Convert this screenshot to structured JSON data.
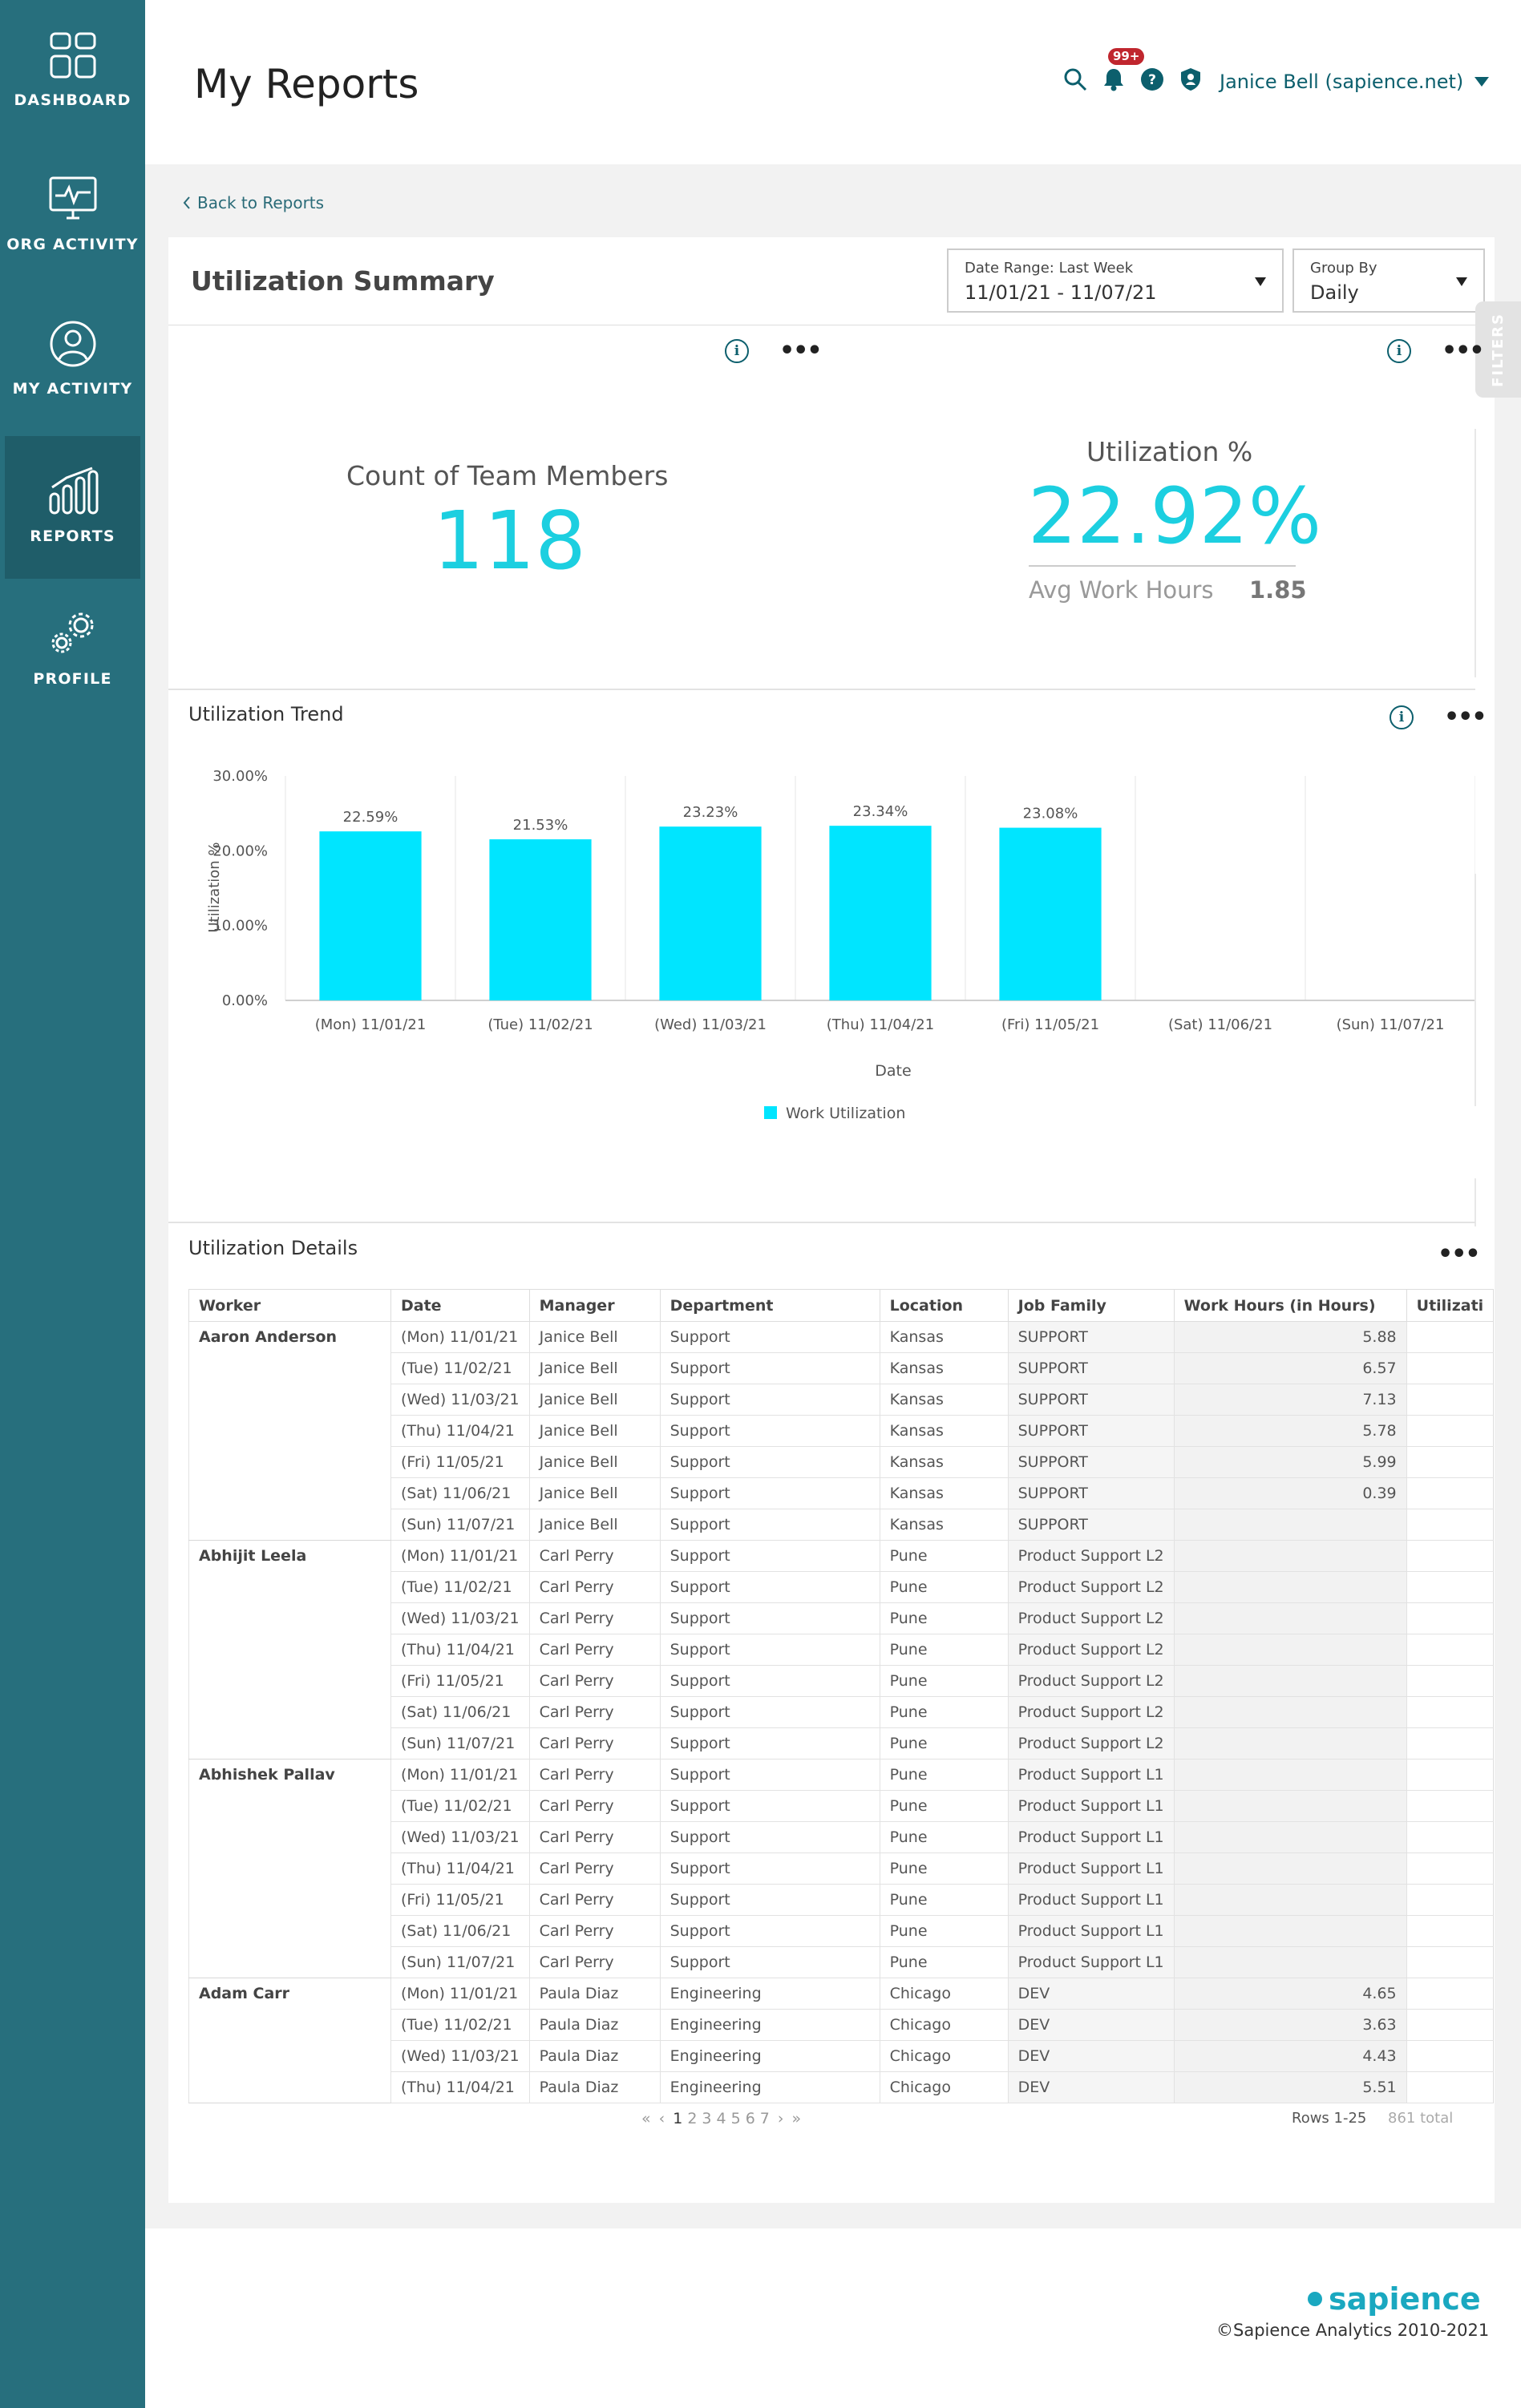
{
  "sidebar": {
    "items": [
      {
        "label": "DASHBOARD",
        "icon": "dashboard-grid-icon",
        "active": false
      },
      {
        "label": "ORG ACTIVITY",
        "icon": "monitor-pulse-icon",
        "active": false
      },
      {
        "label": "MY ACTIVITY",
        "icon": "user-circle-icon",
        "active": false
      },
      {
        "label": "REPORTS",
        "icon": "bar-chart-icon",
        "active": true
      },
      {
        "label": "PROFILE",
        "icon": "gears-icon",
        "active": false
      }
    ]
  },
  "header": {
    "title": "My Reports",
    "notification_badge": "99+",
    "user_name": "Janice Bell (sapience.net)",
    "icons": [
      "search-icon",
      "bell-icon",
      "help-icon",
      "shield-user-icon"
    ]
  },
  "back_link": "Back to Reports",
  "report": {
    "title": "Utilization Summary",
    "date_range": {
      "label": "Date Range: Last Week",
      "value": "11/01/21 - 11/07/21"
    },
    "group_by": {
      "label": "Group By",
      "value": "Daily"
    },
    "filters_tab": "FILTERS"
  },
  "kpis": {
    "team_count_label": "Count of Team Members",
    "team_count_value": "118",
    "utilization_label": "Utilization %",
    "utilization_value": "22.92%",
    "avg_hours_label": "Avg Work Hours",
    "avg_hours_value": "1.85"
  },
  "trend": {
    "title": "Utilization Trend"
  },
  "chart_data": {
    "type": "bar",
    "categories": [
      "(Mon) 11/01/21",
      "(Tue) 11/02/21",
      "(Wed) 11/03/21",
      "(Thu) 11/04/21",
      "(Fri) 11/05/21",
      "(Sat) 11/06/21",
      "(Sun) 11/07/21"
    ],
    "series": [
      {
        "name": "Work Utilization",
        "values": [
          22.59,
          21.53,
          23.23,
          23.34,
          23.08,
          null,
          null
        ],
        "color": "#00e5ff"
      }
    ],
    "data_labels": [
      "22.59%",
      "21.53%",
      "23.23%",
      "23.34%",
      "23.08%",
      "",
      ""
    ],
    "yticks": [
      "0.00%",
      "10.00%",
      "20.00%",
      "30.00%"
    ],
    "ylim": [
      0,
      30
    ],
    "xlabel": "Date",
    "ylabel": "Utilization %",
    "legend": "bottom-center",
    "grid": "vertical"
  },
  "details": {
    "title": "Utilization Details",
    "columns": [
      "Worker",
      "Date",
      "Manager",
      "Department",
      "Location",
      "Job Family",
      "Work Hours (in Hours)",
      "Utilizati"
    ],
    "groups": [
      {
        "worker": "Aaron Anderson",
        "rows": [
          [
            "(Mon) 11/01/21",
            "Janice Bell",
            "Support",
            "Kansas",
            "SUPPORT",
            "5.88"
          ],
          [
            "(Tue) 11/02/21",
            "Janice Bell",
            "Support",
            "Kansas",
            "SUPPORT",
            "6.57"
          ],
          [
            "(Wed) 11/03/21",
            "Janice Bell",
            "Support",
            "Kansas",
            "SUPPORT",
            "7.13"
          ],
          [
            "(Thu) 11/04/21",
            "Janice Bell",
            "Support",
            "Kansas",
            "SUPPORT",
            "5.78"
          ],
          [
            "(Fri) 11/05/21",
            "Janice Bell",
            "Support",
            "Kansas",
            "SUPPORT",
            "5.99"
          ],
          [
            "(Sat) 11/06/21",
            "Janice Bell",
            "Support",
            "Kansas",
            "SUPPORT",
            "0.39"
          ],
          [
            "(Sun) 11/07/21",
            "Janice Bell",
            "Support",
            "Kansas",
            "SUPPORT",
            ""
          ]
        ]
      },
      {
        "worker": "Abhijit Leela",
        "rows": [
          [
            "(Mon) 11/01/21",
            "Carl Perry",
            "Support",
            "Pune",
            "Product Support L2",
            ""
          ],
          [
            "(Tue) 11/02/21",
            "Carl Perry",
            "Support",
            "Pune",
            "Product Support L2",
            ""
          ],
          [
            "(Wed) 11/03/21",
            "Carl Perry",
            "Support",
            "Pune",
            "Product Support L2",
            ""
          ],
          [
            "(Thu) 11/04/21",
            "Carl Perry",
            "Support",
            "Pune",
            "Product Support L2",
            ""
          ],
          [
            "(Fri) 11/05/21",
            "Carl Perry",
            "Support",
            "Pune",
            "Product Support L2",
            ""
          ],
          [
            "(Sat) 11/06/21",
            "Carl Perry",
            "Support",
            "Pune",
            "Product Support L2",
            ""
          ],
          [
            "(Sun) 11/07/21",
            "Carl Perry",
            "Support",
            "Pune",
            "Product Support L2",
            ""
          ]
        ]
      },
      {
        "worker": "Abhishek Pallav",
        "rows": [
          [
            "(Mon) 11/01/21",
            "Carl Perry",
            "Support",
            "Pune",
            "Product Support L1",
            ""
          ],
          [
            "(Tue) 11/02/21",
            "Carl Perry",
            "Support",
            "Pune",
            "Product Support L1",
            ""
          ],
          [
            "(Wed) 11/03/21",
            "Carl Perry",
            "Support",
            "Pune",
            "Product Support L1",
            ""
          ],
          [
            "(Thu) 11/04/21",
            "Carl Perry",
            "Support",
            "Pune",
            "Product Support L1",
            ""
          ],
          [
            "(Fri) 11/05/21",
            "Carl Perry",
            "Support",
            "Pune",
            "Product Support L1",
            ""
          ],
          [
            "(Sat) 11/06/21",
            "Carl Perry",
            "Support",
            "Pune",
            "Product Support L1",
            ""
          ],
          [
            "(Sun) 11/07/21",
            "Carl Perry",
            "Support",
            "Pune",
            "Product Support L1",
            ""
          ]
        ]
      },
      {
        "worker": "Adam Carr",
        "rows": [
          [
            "(Mon) 11/01/21",
            "Paula Diaz",
            "Engineering",
            "Chicago",
            "DEV",
            "4.65"
          ],
          [
            "(Tue) 11/02/21",
            "Paula Diaz",
            "Engineering",
            "Chicago",
            "DEV",
            "3.63"
          ],
          [
            "(Wed) 11/03/21",
            "Paula Diaz",
            "Engineering",
            "Chicago",
            "DEV",
            "4.43"
          ],
          [
            "(Thu) 11/04/21",
            "Paula Diaz",
            "Engineering",
            "Chicago",
            "DEV",
            "5.51"
          ]
        ]
      }
    ],
    "pagination": {
      "first": "«",
      "prev": "‹",
      "pages": [
        "1",
        "2",
        "3",
        "4",
        "5",
        "6",
        "7"
      ],
      "current": "1",
      "next": "›",
      "last": "»"
    },
    "rows_info": "Rows 1-25",
    "total_info": "861 total"
  },
  "footer": {
    "logo": "sapience",
    "copyright": "©Sapience Analytics 2010-2021"
  }
}
